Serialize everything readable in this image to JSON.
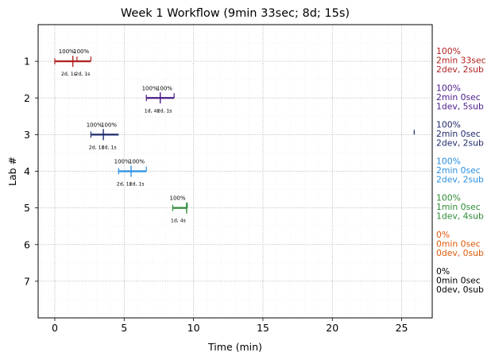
{
  "chart_data": {
    "type": "timeline",
    "title": "Week 1 Workflow (9min 33sec; 8d; 15s)",
    "xlabel": "Time (min)",
    "ylabel": "Lab #",
    "xlim": [
      -1.2,
      27.2
    ],
    "ylim": [
      8,
      0
    ],
    "xticks": [
      0,
      5,
      10,
      15,
      20,
      25
    ],
    "yticks": [
      1,
      2,
      3,
      4,
      5,
      6,
      7
    ],
    "grid": true,
    "labs": [
      {
        "lab": 1,
        "color": "#b22222",
        "start": 0.0,
        "end": 2.6,
        "marks": [
          1.6,
          2.6
        ],
        "center": 1.3,
        "pcts": [
          {
            "x": 0.85,
            "text": "100%"
          },
          {
            "x": 1.9,
            "text": "100%"
          }
        ],
        "info": [
          {
            "x": 1.0,
            "text": "2d, 1s"
          },
          {
            "x": 2.0,
            "text": "2d, 1s"
          }
        ],
        "side": [
          "100%",
          "2min 33sec",
          "2dev, 2sub"
        ]
      },
      {
        "lab": 2,
        "color": "#4b1b8a",
        "start": 6.6,
        "end": 8.6,
        "marks": [
          8.6
        ],
        "center": 7.6,
        "pcts": [
          {
            "x": 6.85,
            "text": "100%"
          },
          {
            "x": 7.9,
            "text": "100%"
          }
        ],
        "info": [
          {
            "x": 7.0,
            "text": "1d, 4s"
          },
          {
            "x": 7.9,
            "text": "2d, 1s"
          }
        ],
        "side": [
          "100%",
          "2min 0sec",
          "1dev, 5sub"
        ]
      },
      {
        "lab": 3,
        "color": "#1f2a6b",
        "start": 2.6,
        "end": 4.6,
        "marks": [],
        "center": 3.5,
        "pcts": [
          {
            "x": 2.85,
            "text": "100%"
          },
          {
            "x": 3.9,
            "text": "100%"
          }
        ],
        "info": [
          {
            "x": 3.0,
            "text": "2d, 1s"
          },
          {
            "x": 3.9,
            "text": "2d, 1s"
          }
        ],
        "side": [
          "100%",
          "2min 0sec",
          "2dev, 2sub"
        ],
        "outlier": 25.9
      },
      {
        "lab": 4,
        "color": "#2b8fe0",
        "start": 4.6,
        "end": 6.6,
        "marks": [
          6.6
        ],
        "center": 5.5,
        "pcts": [
          {
            "x": 4.85,
            "text": "100%"
          },
          {
            "x": 5.9,
            "text": "100%"
          }
        ],
        "info": [
          {
            "x": 5.0,
            "text": "2d, 1s"
          },
          {
            "x": 5.9,
            "text": "2d, 1s"
          }
        ],
        "side": [
          "100%",
          "2min 0sec",
          "2dev, 2sub"
        ]
      },
      {
        "lab": 5,
        "color": "#2e8b35",
        "start": 8.5,
        "end": 9.55,
        "marks": [
          9.55
        ],
        "center": 9.5,
        "pcts": [
          {
            "x": 8.85,
            "text": "100%"
          }
        ],
        "info": [
          {
            "x": 8.9,
            "text": "1d, 4s"
          }
        ],
        "side": [
          "100%",
          "1min 0sec",
          "1dev, 4sub"
        ]
      },
      {
        "lab": 6,
        "color": "#e05a0a",
        "side": [
          "0%",
          "0min 0sec",
          "0dev, 0sub"
        ]
      },
      {
        "lab": 7,
        "color": "#000000",
        "side": [
          "0%",
          "0min 0sec",
          "0dev, 0sub"
        ]
      }
    ]
  }
}
